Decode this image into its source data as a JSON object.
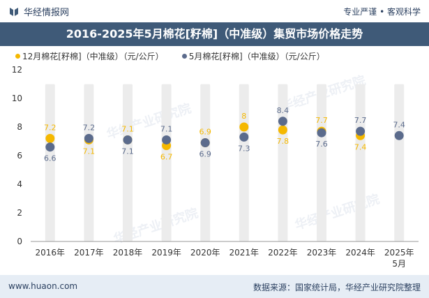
{
  "header": {
    "brand_name": "华经情报网",
    "tagline": "专业严谨 • 客观科学"
  },
  "watermark": "华经产业研究院",
  "footer": {
    "website": "www.huaon.com",
    "source": "数据来源：国家统计局，华经产业研究院整理"
  },
  "colors": {
    "series_12": "#f5b800",
    "series_5": "#5b6b8c",
    "title_bar": "#3f5a78",
    "column_band": "#ececec"
  },
  "chart_data": {
    "type": "scatter",
    "title": "2016-2025年5月棉花[籽棉]（中准级）集贸市场价格走势",
    "categories": [
      "2016年",
      "2017年",
      "2018年",
      "2019年",
      "2020年",
      "2021年",
      "2022年",
      "2023年",
      "2024年",
      "2025年5月"
    ],
    "series": [
      {
        "name": "12月棉花[籽棉]（中准级）（元/公斤）",
        "values": [
          7.2,
          7.1,
          7.1,
          6.7,
          6.9,
          8,
          7.8,
          7.7,
          7.4,
          null
        ]
      },
      {
        "name": "5月棉花[籽棉]（中准级）（元/公斤）",
        "values": [
          6.6,
          7.2,
          7.1,
          7.1,
          6.9,
          7.3,
          8.4,
          7.6,
          7.7,
          7.4
        ]
      }
    ],
    "ylim": [
      0,
      12
    ],
    "yticks": [
      0,
      2,
      4,
      6,
      8,
      10,
      12
    ],
    "xlabel": "",
    "ylabel": "",
    "legend_position": "top-left",
    "grid": false
  }
}
